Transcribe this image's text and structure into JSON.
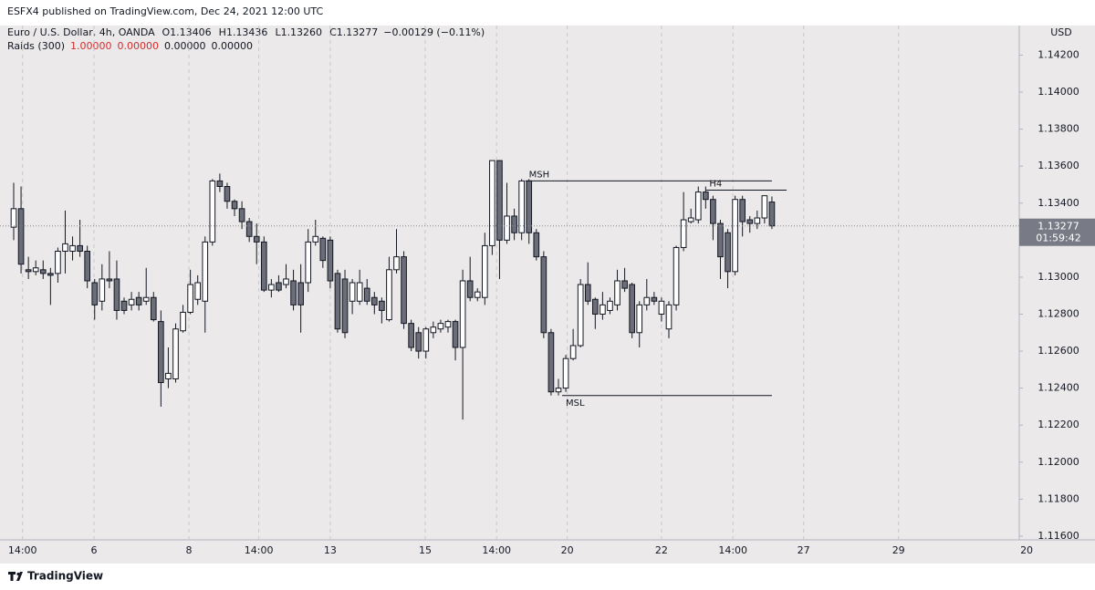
{
  "header": {
    "published": "ESFX4 published on TradingView.com, Dec 24, 2021 12:00 UTC",
    "brand": "TradingView"
  },
  "chart_data": {
    "type": "candlestick",
    "symbol": "Euro / U.S. Dollar, 4h, OANDA",
    "ohlc_labels": [
      "O1.13406",
      "H1.13436",
      "L1.13260",
      "C1.13277"
    ],
    "change_label": "−0.00129 (−0.11%)",
    "indicator": {
      "name": "Raids (300)",
      "values": [
        "1.00000",
        "0.00000",
        "0.00000",
        "0.00000"
      ],
      "colors": [
        "#d32f2f",
        "#d32f2f",
        "#131722",
        "#131722"
      ]
    },
    "currency": "USD",
    "countdown": "01:59:42",
    "up_color": "#ffffff",
    "down_color": "#6b6e78",
    "open": [
      1.1327,
      1.1337,
      1.1304,
      1.1303,
      1.1304,
      1.1302,
      1.1302,
      1.1314,
      1.1314,
      1.1317,
      1.1314,
      1.1297,
      1.1287,
      1.1299,
      1.1299,
      1.1287,
      1.1285,
      1.1289,
      1.1287,
      1.1289,
      1.1276,
      1.1245,
      1.1245,
      1.1271,
      1.1281,
      1.1288,
      1.1287,
      1.1319,
      1.1352,
      1.1349,
      1.1341,
      1.1337,
      1.133,
      1.1322,
      1.1319,
      1.1293,
      1.1297,
      1.1296,
      1.1298,
      1.1297,
      1.1297,
      1.1319,
      1.1321,
      1.132,
      1.1302,
      1.1299,
      1.1287,
      1.1287,
      1.1294,
      1.1289,
      1.1287,
      1.1277,
      1.1304,
      1.1311,
      1.1275,
      1.127,
      1.126,
      1.127,
      1.1272,
      1.1273,
      1.1276,
      1.1262,
      1.1298,
      1.1289,
      1.1289,
      1.1317,
      1.1363,
      1.132,
      1.1333,
      1.1324,
      1.1352,
      1.1324,
      1.1311,
      1.127,
      1.1238,
      1.124,
      1.1256,
      1.1263,
      1.1296,
      1.1288,
      1.128,
      1.1282,
      1.1285,
      1.1298,
      1.1296,
      1.127,
      1.1285,
      1.1289,
      1.128,
      1.1272,
      1.1285,
      1.1316,
      1.133,
      1.1331,
      1.1346,
      1.1342,
      1.1329,
      1.1324,
      1.1303,
      1.1342,
      1.1331,
      1.1329,
      1.1332,
      1.13406
    ],
    "high": [
      1.1351,
      1.1349,
      1.1311,
      1.1309,
      1.1309,
      1.1305,
      1.1316,
      1.1336,
      1.1322,
      1.1331,
      1.1317,
      1.1299,
      1.1307,
      1.1314,
      1.1309,
      1.1289,
      1.1292,
      1.1292,
      1.1305,
      1.1292,
      1.1282,
      1.1262,
      1.1275,
      1.1285,
      1.1304,
      1.1301,
      1.1322,
      1.1353,
      1.1356,
      1.1351,
      1.1342,
      1.1341,
      1.1332,
      1.1329,
      1.1322,
      1.1299,
      1.1301,
      1.1307,
      1.1304,
      1.1307,
      1.1326,
      1.1331,
      1.1322,
      1.1322,
      1.1304,
      1.1304,
      1.1299,
      1.1304,
      1.1299,
      1.1292,
      1.1289,
      1.1311,
      1.1326,
      1.1314,
      1.1277,
      1.1273,
      1.1273,
      1.1276,
      1.1277,
      1.1277,
      1.1277,
      1.1304,
      1.1311,
      1.1294,
      1.1324,
      1.1363,
      1.1363,
      1.1351,
      1.1337,
      1.1353,
      1.1353,
      1.1326,
      1.1314,
      1.1272,
      1.1245,
      1.1258,
      1.1272,
      1.1299,
      1.1308,
      1.1289,
      1.1292,
      1.1289,
      1.1304,
      1.1305,
      1.1297,
      1.1287,
      1.1299,
      1.1292,
      1.1289,
      1.1287,
      1.1317,
      1.1346,
      1.1337,
      1.1349,
      1.1349,
      1.1344,
      1.1331,
      1.1326,
      1.1344,
      1.1344,
      1.1333,
      1.1336,
      1.1344,
      1.13436
    ],
    "low": [
      1.132,
      1.1302,
      1.1299,
      1.1301,
      1.1299,
      1.1285,
      1.1297,
      1.1302,
      1.1309,
      1.1311,
      1.1294,
      1.1277,
      1.1282,
      1.1294,
      1.1277,
      1.128,
      1.1282,
      1.1282,
      1.1285,
      1.1276,
      1.123,
      1.124,
      1.1243,
      1.127,
      1.128,
      1.1285,
      1.127,
      1.1317,
      1.1346,
      1.1337,
      1.1333,
      1.1326,
      1.1319,
      1.1307,
      1.1292,
      1.1289,
      1.1292,
      1.1294,
      1.1282,
      1.127,
      1.1292,
      1.1317,
      1.1305,
      1.1294,
      1.127,
      1.1267,
      1.128,
      1.1285,
      1.1285,
      1.128,
      1.1275,
      1.1276,
      1.1302,
      1.1272,
      1.126,
      1.1256,
      1.1256,
      1.1267,
      1.127,
      1.127,
      1.1255,
      1.1223,
      1.1287,
      1.1287,
      1.1285,
      1.1312,
      1.1299,
      1.1318,
      1.132,
      1.132,
      1.1318,
      1.1309,
      1.1267,
      1.1236,
      1.1236,
      1.1238,
      1.1255,
      1.1262,
      1.1285,
      1.1272,
      1.1277,
      1.128,
      1.1282,
      1.1292,
      1.1267,
      1.1262,
      1.1282,
      1.1285,
      1.1276,
      1.1267,
      1.1282,
      1.1314,
      1.1329,
      1.1329,
      1.1337,
      1.132,
      1.1299,
      1.1294,
      1.1301,
      1.1322,
      1.1324,
      1.1326,
      1.1329,
      1.1326
    ],
    "close": [
      1.1337,
      1.1307,
      1.1303,
      1.1305,
      1.1302,
      1.1301,
      1.1314,
      1.1318,
      1.1317,
      1.1314,
      1.1298,
      1.1285,
      1.1299,
      1.1298,
      1.1282,
      1.1282,
      1.1288,
      1.1285,
      1.1289,
      1.1277,
      1.1243,
      1.1248,
      1.1272,
      1.1281,
      1.1296,
      1.1297,
      1.1319,
      1.1352,
      1.1349,
      1.1341,
      1.1337,
      1.133,
      1.1322,
      1.1319,
      1.1293,
      1.1296,
      1.1293,
      1.1299,
      1.1285,
      1.1285,
      1.1319,
      1.1322,
      1.1309,
      1.1298,
      1.1272,
      1.127,
      1.1297,
      1.1297,
      1.1287,
      1.1285,
      1.1282,
      1.1304,
      1.1311,
      1.1275,
      1.1262,
      1.126,
      1.1272,
      1.1273,
      1.1275,
      1.1276,
      1.1262,
      1.1298,
      1.1289,
      1.1292,
      1.1317,
      1.1363,
      1.132,
      1.1333,
      1.1324,
      1.1352,
      1.1324,
      1.1311,
      1.127,
      1.1238,
      1.124,
      1.1256,
      1.1263,
      1.1296,
      1.1287,
      1.128,
      1.1285,
      1.1287,
      1.1298,
      1.1294,
      1.127,
      1.1285,
      1.1289,
      1.1287,
      1.1287,
      1.1285,
      1.1316,
      1.1331,
      1.1332,
      1.1346,
      1.1342,
      1.1329,
      1.1311,
      1.1303,
      1.1342,
      1.133,
      1.1329,
      1.1332,
      1.1344,
      1.13277
    ],
    "xlim": [
      -1.86,
      136.6
    ],
    "xticks": [
      {
        "value": 1.2,
        "label": "14:00"
      },
      {
        "value": 10.9,
        "label": "6"
      },
      {
        "value": 23.8,
        "label": "8"
      },
      {
        "value": 33.3,
        "label": "14:00"
      },
      {
        "value": 43,
        "label": "13"
      },
      {
        "value": 55.9,
        "label": "15"
      },
      {
        "value": 65.6,
        "label": "14:00"
      },
      {
        "value": 75.2,
        "label": "20"
      },
      {
        "value": 88,
        "label": "22"
      },
      {
        "value": 97.7,
        "label": "14:00"
      },
      {
        "value": 107.3,
        "label": "27"
      },
      {
        "value": 120.2,
        "label": "29"
      },
      {
        "value": 137.6,
        "label": "20"
      }
    ],
    "ylim": [
      1.1158,
      1.1436
    ],
    "yticks": [
      {
        "value": 1.142,
        "label": "1.14200"
      },
      {
        "value": 1.14,
        "label": "1.14000"
      },
      {
        "value": 1.138,
        "label": "1.13800"
      },
      {
        "value": 1.136,
        "label": "1.13600"
      },
      {
        "value": 1.134,
        "label": "1.13400"
      },
      {
        "value": 1.132,
        "label": "1.13200"
      },
      {
        "value": 1.13,
        "label": "1.13000"
      },
      {
        "value": 1.128,
        "label": "1.12800"
      },
      {
        "value": 1.126,
        "label": "1.12600"
      },
      {
        "value": 1.124,
        "label": "1.12400"
      },
      {
        "value": 1.122,
        "label": "1.12200"
      },
      {
        "value": 1.12,
        "label": "1.12000"
      },
      {
        "value": 1.118,
        "label": "1.11800"
      },
      {
        "value": 1.116,
        "label": "1.11600"
      }
    ],
    "grid": true,
    "levels": [
      {
        "text": "MSH",
        "value": 1.1352,
        "from": 69.5,
        "to": 103
      },
      {
        "text": "H4",
        "value": 1.1347,
        "from": 94,
        "to": 105
      },
      {
        "text": "MSL",
        "value": 1.1236,
        "from": 74.5,
        "to": 103
      }
    ]
  }
}
